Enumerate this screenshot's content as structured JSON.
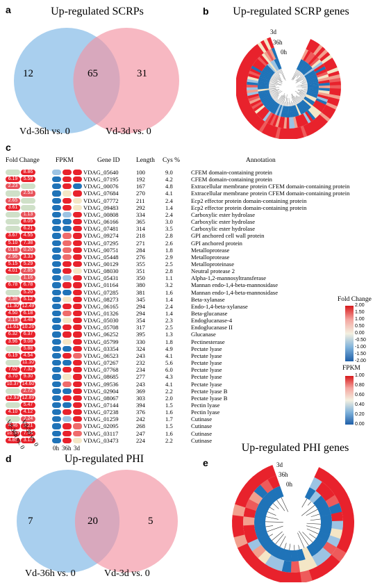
{
  "panel_a": {
    "letter": "a",
    "title": "Up-regulated SCRPs",
    "left_only": "12",
    "overlap": "65",
    "right_only": "31",
    "left_label": "Vd-36h vs. 0",
    "right_label": "Vd-3d vs. 0"
  },
  "panel_b": {
    "letter": "b",
    "title": "Up-regulated SCRP genes",
    "ring_labels": [
      "3d",
      "36h",
      "0h"
    ]
  },
  "panel_c": {
    "letter": "c",
    "headers": {
      "fold_change": "Fold Change",
      "fpkm": "FPKM",
      "gene_id": "Gene ID",
      "length": "Length",
      "cys": "Cys %",
      "annotation": "Annotation"
    },
    "fpkm_columns": [
      "0h",
      "36h",
      "3d"
    ],
    "fc_columns": [
      "Vd-36h vs. 0",
      "Vd-3d vs. 0"
    ],
    "rows": [
      {
        "fc": [
          "",
          "8.86"
        ],
        "fpkm": [
          -0.3,
          1,
          1
        ],
        "gene": "VDAG_05640",
        "len": "100",
        "cys": "9.0",
        "ann": "CFEM domain-containing protein"
      },
      {
        "fc": [
          "6.19",
          "5.59"
        ],
        "fpkm": [
          -1,
          1,
          1
        ],
        "gene": "VDAG_07195",
        "len": "192",
        "cys": "4.2",
        "ann": "CFEM domain-containing protein"
      },
      {
        "fc": [
          "2.23",
          ""
        ],
        "fpkm": [
          -1,
          1,
          -0.5
        ],
        "gene": "VDAG_00076",
        "len": "167",
        "cys": "4.8",
        "ann": "Extracellular membrane protein CFEM domain-containing protein"
      },
      {
        "fc": [
          "",
          "2.53"
        ],
        "fpkm": [
          -1,
          0.3,
          1
        ],
        "gene": "VDAG_07684",
        "len": "270",
        "cys": "4.1",
        "ann": "Extracellular membrane protein CFEM domain-containing protein"
      },
      {
        "fc": [
          "2.65",
          ""
        ],
        "fpkm": [
          -1,
          1,
          0.1
        ],
        "gene": "VDAG_07772",
        "len": "211",
        "cys": "2.4",
        "ann": "Ecp2 effector protein domain-containing protein"
      },
      {
        "fc": [
          "3.61",
          ""
        ],
        "fpkm": [
          -1,
          1,
          0.2
        ],
        "gene": "VDAG_09483",
        "len": "292",
        "cys": "1.4",
        "ann": "Ecp2 effector protein domain-containing protein"
      },
      {
        "fc": [
          "",
          "1.13"
        ],
        "fpkm": [
          -1,
          -0.2,
          1
        ],
        "gene": "VDAG_00808",
        "len": "334",
        "cys": "2.4",
        "ann": "Carboxylic ester hydrolase"
      },
      {
        "fc": [
          "",
          "8.05"
        ],
        "fpkm": [
          -1,
          -1,
          1
        ],
        "gene": "VDAG_06166",
        "len": "365",
        "cys": "3.0",
        "ann": "Carboxylic ester hydrolase"
      },
      {
        "fc": [
          "",
          "6.21"
        ],
        "fpkm": [
          -1,
          -1,
          1
        ],
        "gene": "VDAG_07481",
        "len": "314",
        "cys": "3.5",
        "ann": "Carboxylic ester hydrolase"
      },
      {
        "fc": [
          "3.67",
          "4.55"
        ],
        "fpkm": [
          -1,
          0.8,
          1
        ],
        "gene": "VDAG_09274",
        "len": "218",
        "cys": "2.8",
        "ann": "GPI anchored cell wall protein"
      },
      {
        "fc": [
          "5.10",
          "7.38"
        ],
        "fpkm": [
          -1,
          0.6,
          1
        ],
        "gene": "VDAG_07295",
        "len": "271",
        "cys": "2.6",
        "ann": "GPI anchored protein"
      },
      {
        "fc": [
          "0.18",
          "0.20"
        ],
        "fpkm": [
          -1,
          0.7,
          1
        ],
        "gene": "VDAG_00751",
        "len": "284",
        "cys": "1.8",
        "ann": "Metalloprotease"
      },
      {
        "fc": [
          "2.96",
          "3.33"
        ],
        "fpkm": [
          -1,
          0.7,
          1
        ],
        "gene": "VDAG_05448",
        "len": "276",
        "cys": "2.9",
        "ann": "Metalloprotease"
      },
      {
        "fc": [
          "5.15",
          "5.29"
        ],
        "fpkm": [
          -1,
          0.9,
          1
        ],
        "gene": "VDAG_00129",
        "len": "355",
        "cys": "2.5",
        "ann": "Metalloproteinase"
      },
      {
        "fc": [
          "4.01",
          "2.85"
        ],
        "fpkm": [
          -1,
          1,
          0.4
        ],
        "gene": "VDAG_08030",
        "len": "351",
        "cys": "2.8",
        "ann": "Neutral protease 2"
      },
      {
        "fc": [
          "",
          "1.16"
        ],
        "fpkm": [
          -1,
          -0.3,
          1
        ],
        "gene": "VDAG_05431",
        "len": "350",
        "cys": "1.1",
        "ann": "Alpha-1,2-mannosyltransferase"
      },
      {
        "fc": [
          "6.78",
          "6.78"
        ],
        "fpkm": [
          -1,
          1,
          1
        ],
        "gene": "VDAG_01164",
        "len": "380",
        "cys": "3.2",
        "ann": "Mannan endo-1,4-beta-mannosidase"
      },
      {
        "fc": [
          "",
          "5.20"
        ],
        "fpkm": [
          -1,
          -1,
          1
        ],
        "gene": "VDAG_07285",
        "len": "381",
        "cys": "1.6",
        "ann": "Mannan endo-1,4-beta-mannosidase"
      },
      {
        "fc": [
          "2.38",
          "5.12"
        ],
        "fpkm": [
          -1,
          0.2,
          1
        ],
        "gene": "VDAG_08273",
        "len": "345",
        "cys": "1.4",
        "ann": "Beta-xylanase"
      },
      {
        "fc": [
          "11.30",
          "12.49"
        ],
        "fpkm": [
          -1,
          1,
          1
        ],
        "gene": "VDAG_06165",
        "len": "294",
        "cys": "2.4",
        "ann": "Endo-1,4-beta-xylanase"
      },
      {
        "fc": [
          "4.50",
          "6.18"
        ],
        "fpkm": [
          -1,
          0.6,
          1
        ],
        "gene": "VDAG_01326",
        "len": "294",
        "cys": "1.4",
        "ann": "Beta-glucanase"
      },
      {
        "fc": [
          "2.19",
          "3.48"
        ],
        "fpkm": [
          -1,
          0.3,
          1
        ],
        "gene": "VDAG_05030",
        "len": "354",
        "cys": "2.3",
        "ann": "Endoglucanase-4"
      },
      {
        "fc": [
          "11.61",
          "10.26"
        ],
        "fpkm": [
          -1,
          1,
          1
        ],
        "gene": "VDAG_05708",
        "len": "317",
        "cys": "2.5",
        "ann": "Endoglucanase II"
      },
      {
        "fc": [
          "6.32",
          "6.37"
        ],
        "fpkm": [
          -1,
          1,
          1
        ],
        "gene": "VDAG_06252",
        "len": "395",
        "cys": "1.3",
        "ann": "Glucanase"
      },
      {
        "fc": [
          "3.96",
          "9.08"
        ],
        "fpkm": [
          -1,
          0.3,
          1
        ],
        "gene": "VDAG_05799",
        "len": "330",
        "cys": "1.8",
        "ann": "Pectinesterase"
      },
      {
        "fc": [
          "",
          "5.88"
        ],
        "fpkm": [
          -1,
          -1,
          1
        ],
        "gene": "VDAG_03354",
        "len": "324",
        "cys": "4.9",
        "ann": "Pectate lyase"
      },
      {
        "fc": [
          "6.19",
          "4.54"
        ],
        "fpkm": [
          -1,
          1,
          0.6
        ],
        "gene": "VDAG_06523",
        "len": "243",
        "cys": "4.1",
        "ann": "Pectate lyase"
      },
      {
        "fc": [
          "",
          "11.10"
        ],
        "fpkm": [
          -1,
          -1,
          1
        ],
        "gene": "VDAG_07267",
        "len": "232",
        "cys": "5.6",
        "ann": "Pectate lyase"
      },
      {
        "fc": [
          "7.02",
          "7.32"
        ],
        "fpkm": [
          -1,
          1,
          1
        ],
        "gene": "VDAG_07768",
        "len": "234",
        "cys": "6.0",
        "ann": "Pectate lyase"
      },
      {
        "fc": [
          "3.70",
          "9.30"
        ],
        "fpkm": [
          -1,
          0.2,
          1
        ],
        "gene": "VDAG_08685",
        "len": "277",
        "cys": "4.3",
        "ann": "Pectate lyase"
      },
      {
        "fc": [
          "10.37",
          "14.60"
        ],
        "fpkm": [
          -1,
          0.8,
          1
        ],
        "gene": "VDAG_09536",
        "len": "243",
        "cys": "4.1",
        "ann": "Pectate lyase"
      },
      {
        "fc": [
          "",
          "2.72"
        ],
        "fpkm": [
          -1,
          -0.5,
          1
        ],
        "gene": "VDAG_02904",
        "len": "369",
        "cys": "2.2",
        "ann": "Pectate lyase B"
      },
      {
        "fc": [
          "12.93",
          "12.89"
        ],
        "fpkm": [
          -1,
          1,
          1
        ],
        "gene": "VDAG_08067",
        "len": "303",
        "cys": "2.0",
        "ann": "Pectate lyase B"
      },
      {
        "fc": [
          "",
          "5.47"
        ],
        "fpkm": [
          -1,
          -1,
          1
        ],
        "gene": "VDAG_07144",
        "len": "394",
        "cys": "1.5",
        "ann": "Pectin lyase"
      },
      {
        "fc": [
          "4.10",
          "4.12"
        ],
        "fpkm": [
          -1,
          1,
          1
        ],
        "gene": "VDAG_07238",
        "len": "376",
        "cys": "1.6",
        "ann": "Pectin lyase"
      },
      {
        "fc": [
          "",
          "2.24"
        ],
        "fpkm": [
          -1,
          -0.3,
          1
        ],
        "gene": "VDAG_01259",
        "len": "242",
        "cys": "1.7",
        "ann": "Cutinase"
      },
      {
        "fc": [
          "4.46",
          "3.21"
        ],
        "fpkm": [
          -1,
          1,
          0.5
        ],
        "gene": "VDAG_02095",
        "len": "268",
        "cys": "1.5",
        "ann": "Cutinase"
      },
      {
        "fc": [
          "10.59",
          "7.44"
        ],
        "fpkm": [
          -1,
          1,
          0.7
        ],
        "gene": "VDAG_03117",
        "len": "247",
        "cys": "1.6",
        "ann": "Cutinase"
      },
      {
        "fc": [
          "4.85",
          "3.13"
        ],
        "fpkm": [
          -1,
          1,
          0.3
        ],
        "gene": "VDAG_03473",
        "len": "224",
        "cys": "2.2",
        "ann": "Cutinase"
      }
    ],
    "legend_fc": {
      "title": "Fold Change",
      "ticks": [
        "2.00",
        "1.50",
        "1.00",
        "0.50",
        "0.00",
        "-0.50",
        "-1.00",
        "-1.50",
        "-2.00"
      ]
    },
    "legend_fpkm": {
      "title": "FPKM",
      "ticks": [
        "1.00",
        "0.80",
        "0.60",
        "0.40",
        "0.20",
        "0.00"
      ]
    }
  },
  "panel_d": {
    "letter": "d",
    "title": "Up-regulated PHI",
    "left_only": "7",
    "overlap": "20",
    "right_only": "5",
    "left_label": "Vd-36h vs. 0",
    "right_label": "Vd-3d vs. 0"
  },
  "panel_e": {
    "letter": "e",
    "title": "Up-regulated PHI genes",
    "ring_labels": [
      "3d",
      "36h",
      "0h"
    ]
  },
  "colors": {
    "venn_left": "#a9cfee",
    "venn_right": "#f7b8c2",
    "venn_overlap": "#d8a8bd",
    "red": "#e8222c",
    "blue": "#1f73b8",
    "pale": "#f4e6c6"
  }
}
